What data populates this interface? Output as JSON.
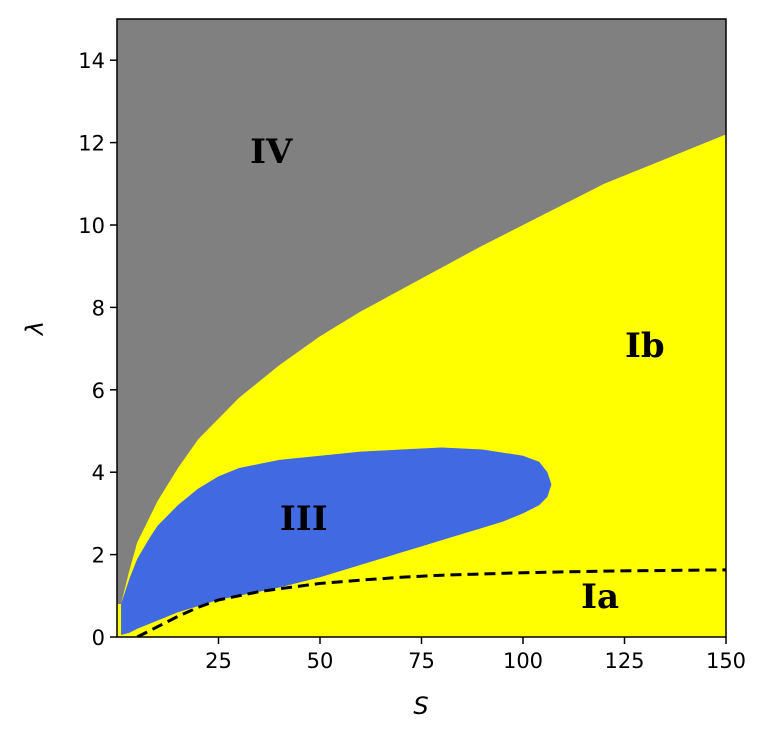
{
  "chart_data": {
    "type": "area",
    "xlabel": "S",
    "ylabel": "λ",
    "xlim": [
      0,
      150
    ],
    "ylim": [
      0,
      15
    ],
    "x_ticks": [
      25,
      50,
      75,
      100,
      125,
      150
    ],
    "x_tick_labels": [
      "25",
      "50",
      "75",
      "100",
      "125",
      "150"
    ],
    "y_ticks": [
      0,
      2,
      4,
      6,
      8,
      10,
      12,
      14
    ],
    "y_tick_labels": [
      "0",
      "2",
      "4",
      "6",
      "8",
      "10",
      "12",
      "14"
    ],
    "grid": false,
    "colors": {
      "IV": "#808080",
      "Ib": "#ffff00",
      "Ia": "#ffff00",
      "III": "#4169e1",
      "dashed_line": "#000000"
    },
    "regions": [
      {
        "name": "IV",
        "color": "#808080",
        "label_at": [
          38,
          11.5
        ],
        "description_boundary_lower": {
          "x": [
            1,
            3,
            5,
            8,
            10,
            15,
            20,
            25,
            30,
            40,
            50,
            60,
            75,
            90,
            100,
            110,
            120,
            130,
            140,
            150
          ],
          "y": [
            0.8,
            1.6,
            2.3,
            2.9,
            3.3,
            4.1,
            4.8,
            5.3,
            5.8,
            6.6,
            7.3,
            7.9,
            8.7,
            9.5,
            10.0,
            10.5,
            11.0,
            11.4,
            11.8,
            12.2
          ]
        }
      },
      {
        "name": "Ib",
        "color": "#ffff00",
        "label_at": [
          130,
          6.8
        ]
      },
      {
        "name": "III",
        "color": "#4169e1",
        "label_at": [
          46,
          2.6
        ],
        "boundary": {
          "x": [
            1,
            3,
            5,
            8,
            10,
            15,
            20,
            25,
            30,
            40,
            50,
            60,
            70,
            80,
            90,
            100,
            104,
            106,
            107,
            106,
            104,
            100,
            95,
            90,
            85,
            80,
            75,
            70,
            60,
            50,
            40,
            30,
            25,
            20,
            15,
            10,
            5,
            3,
            1
          ],
          "y": [
            0.8,
            1.4,
            1.9,
            2.4,
            2.7,
            3.2,
            3.6,
            3.9,
            4.1,
            4.3,
            4.4,
            4.5,
            4.55,
            4.6,
            4.55,
            4.4,
            4.25,
            4.0,
            3.7,
            3.4,
            3.2,
            3.0,
            2.8,
            2.65,
            2.5,
            2.35,
            2.2,
            2.05,
            1.75,
            1.45,
            1.2,
            1.0,
            0.9,
            0.75,
            0.6,
            0.4,
            0.2,
            0.1,
            0.05
          ]
        }
      },
      {
        "name": "Ia",
        "color": "#ffff00",
        "label_at": [
          119,
          0.7
        ]
      }
    ],
    "series": [
      {
        "style": "dashed",
        "x": [
          5,
          10,
          15,
          20,
          25,
          30,
          35,
          40,
          50,
          60,
          70,
          80,
          90,
          100,
          110,
          120,
          130,
          140,
          150
        ],
        "y": [
          0.0,
          0.25,
          0.5,
          0.72,
          0.9,
          1.0,
          1.1,
          1.17,
          1.3,
          1.38,
          1.45,
          1.5,
          1.53,
          1.56,
          1.58,
          1.6,
          1.61,
          1.62,
          1.63
        ]
      }
    ]
  }
}
